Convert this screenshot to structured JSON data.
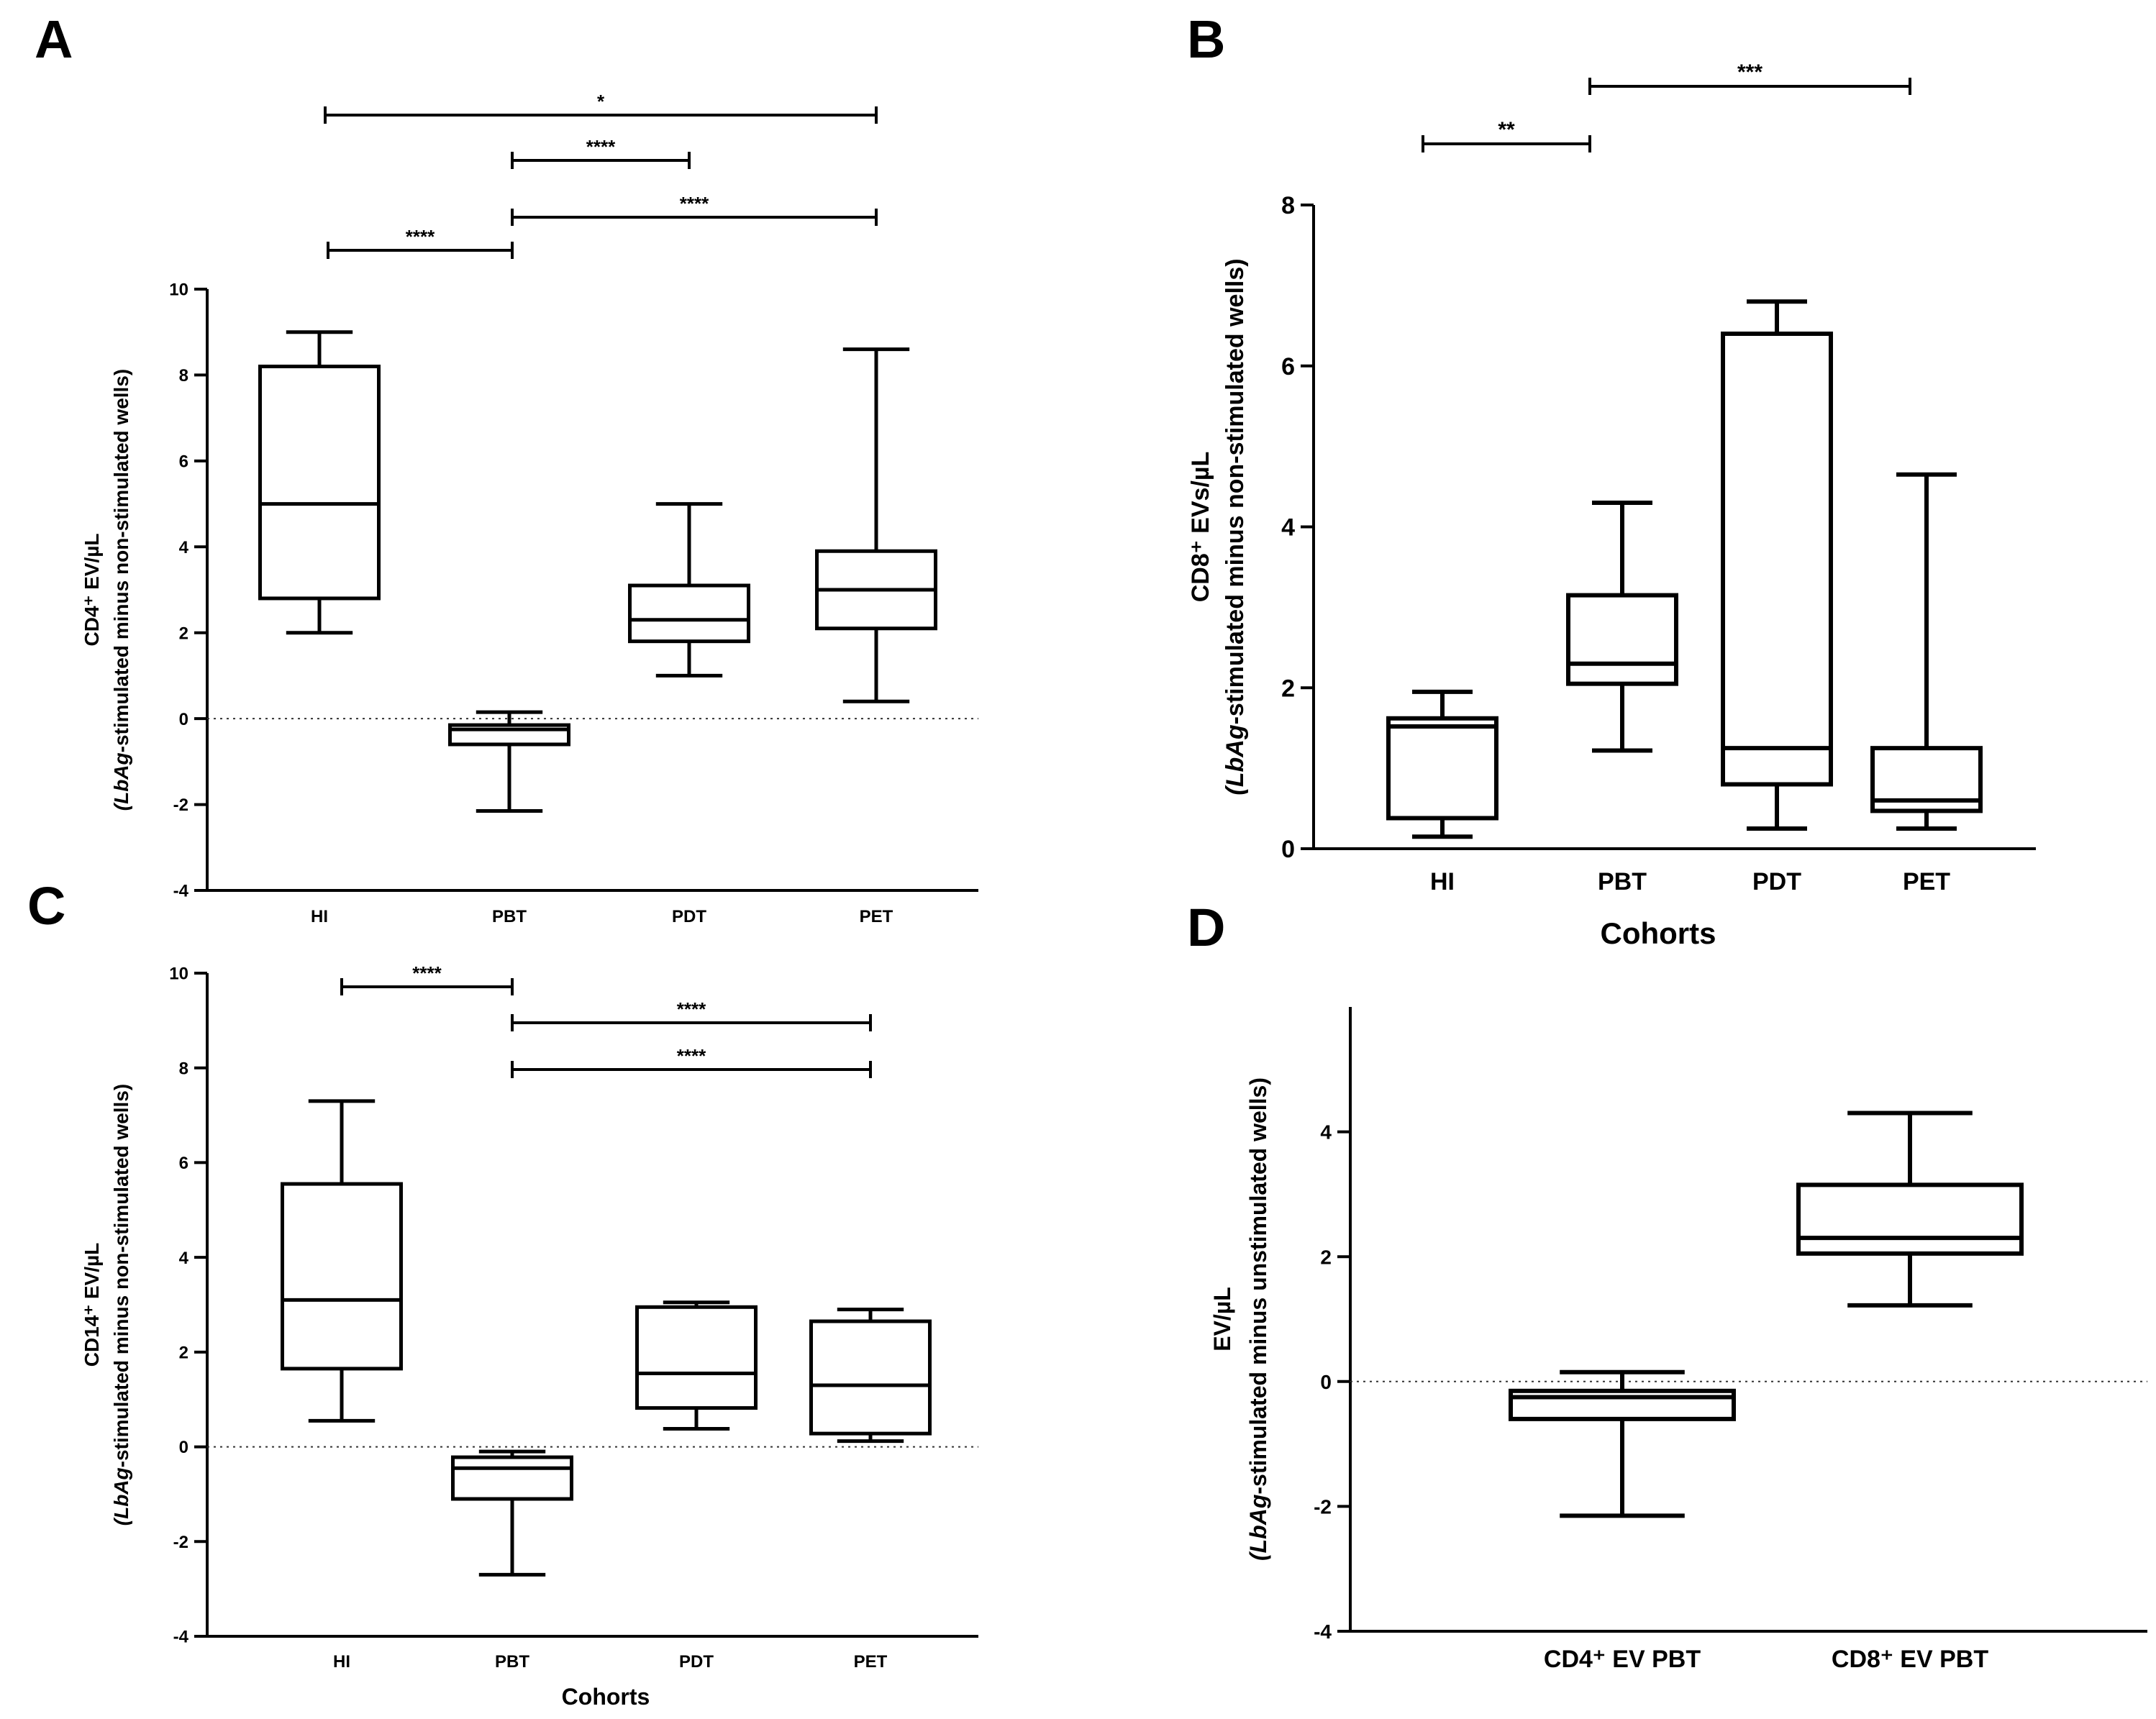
{
  "chart_data": [
    {
      "panel": "A",
      "type": "boxplot",
      "ylabel_line1": "CD4⁺ EV/µL",
      "ylabel_line2_italic": "(LbAg",
      "ylabel_line2_rest": "-stimulated minus non-stimulated wells)",
      "xlabel": "",
      "ylim": [
        -4,
        10
      ],
      "yticks": [
        "-4",
        "-2",
        "0",
        "2",
        "4",
        "6",
        "8",
        "10"
      ],
      "categories": [
        "HI",
        "PBT",
        "PDT",
        "PET"
      ],
      "boxes": [
        {
          "min": 2.0,
          "q1": 2.8,
          "median": 5.0,
          "q3": 8.2,
          "max": 9.0
        },
        {
          "min": -2.15,
          "q1": -0.6,
          "median": -0.25,
          "q3": -0.15,
          "max": 0.15
        },
        {
          "min": 1.0,
          "q1": 1.8,
          "median": 2.3,
          "q3": 3.1,
          "max": 5.0
        },
        {
          "min": 0.4,
          "q1": 2.1,
          "median": 3.0,
          "q3": 3.9,
          "max": 8.6
        }
      ],
      "zero_line": true,
      "significance": [
        {
          "from": "HI",
          "to": "PET",
          "label": "*"
        },
        {
          "from": "PBT",
          "to": "PDT",
          "label": "****"
        },
        {
          "from": "PBT",
          "to": "PET",
          "label": "****"
        },
        {
          "from": "HI",
          "to": "PBT",
          "label": "****"
        }
      ]
    },
    {
      "panel": "B",
      "type": "boxplot",
      "ylabel_line1": "CD8⁺ EVs/µL",
      "ylabel_line2_italic": "(LbAg",
      "ylabel_line2_rest": "-stimulated minus non-stimulated wells)",
      "xlabel": "Cohorts",
      "ylim": [
        0,
        8
      ],
      "yticks": [
        "0",
        "2",
        "4",
        "6",
        "8"
      ],
      "categories": [
        "HI",
        "PBT",
        "PDT",
        "PET"
      ],
      "boxes": [
        {
          "min": 0.15,
          "q1": 0.38,
          "median": 1.52,
          "q3": 1.62,
          "max": 1.95
        },
        {
          "min": 1.22,
          "q1": 2.05,
          "median": 2.3,
          "q3": 3.15,
          "max": 4.3
        },
        {
          "min": 0.25,
          "q1": 0.8,
          "median": 1.25,
          "q3": 6.4,
          "max": 6.8
        },
        {
          "min": 0.25,
          "q1": 0.47,
          "median": 0.6,
          "q3": 1.25,
          "max": 4.65
        }
      ],
      "zero_line": false,
      "significance": [
        {
          "from": "PBT",
          "to": "PET",
          "label": "***"
        },
        {
          "from": "HI",
          "to": "PBT",
          "label": "**"
        }
      ]
    },
    {
      "panel": "C",
      "type": "boxplot",
      "ylabel_line1": "CD14⁺ EV/µL",
      "ylabel_line2_italic": "(LbAg",
      "ylabel_line2_rest": "-stimulated minus non-stimulated wells)",
      "xlabel": "Cohorts",
      "ylim": [
        -4,
        10
      ],
      "yticks": [
        "-4",
        "-2",
        "0",
        "2",
        "4",
        "6",
        "8",
        "10"
      ],
      "categories": [
        "HI",
        "PBT",
        "PDT",
        "PET"
      ],
      "boxes": [
        {
          "min": 0.55,
          "q1": 1.65,
          "median": 3.1,
          "q3": 5.55,
          "max": 7.3
        },
        {
          "min": -2.7,
          "q1": -1.1,
          "median": -0.45,
          "q3": -0.22,
          "max": -0.1
        },
        {
          "min": 0.38,
          "q1": 0.82,
          "median": 1.55,
          "q3": 2.95,
          "max": 3.05
        },
        {
          "min": 0.12,
          "q1": 0.28,
          "median": 1.3,
          "q3": 2.65,
          "max": 2.9
        }
      ],
      "zero_line": true,
      "significance": [
        {
          "from": "HI",
          "to": "PBT",
          "label": "****"
        },
        {
          "from": "PBT",
          "to": "PET",
          "label": "****"
        },
        {
          "from": "PBT",
          "to": "PET",
          "label": "****"
        }
      ]
    },
    {
      "panel": "D",
      "type": "boxplot",
      "ylabel_line1": "EV/µL",
      "ylabel_line2_italic": "(LbAg",
      "ylabel_line2_rest": "-stimulated minus unstimulated wells)",
      "xlabel": "",
      "ylim": [
        -4,
        6
      ],
      "yticks": [
        "-4",
        "-2",
        "0",
        "2",
        "4"
      ],
      "categories": [
        "CD4⁺ EV PBT",
        "CD8⁺ EV PBT"
      ],
      "boxes": [
        {
          "min": -2.15,
          "q1": -0.6,
          "median": -0.25,
          "q3": -0.15,
          "max": 0.15
        },
        {
          "min": 1.22,
          "q1": 2.05,
          "median": 2.3,
          "q3": 3.15,
          "max": 4.3
        }
      ],
      "zero_line": true,
      "significance": []
    }
  ]
}
